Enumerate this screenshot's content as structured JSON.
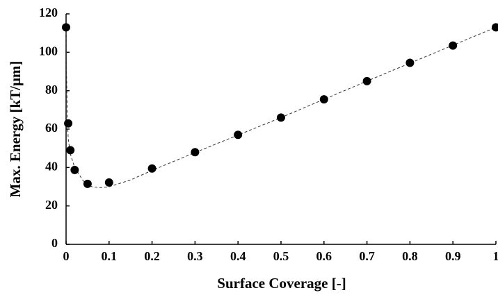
{
  "chart_data": {
    "type": "scatter",
    "x_label": "Surface Coverage [-]",
    "y_label": "Max. Energy [kT/μm]",
    "x": [
      0,
      0.005,
      0.01,
      0.02,
      0.05,
      0.1,
      0.2,
      0.3,
      0.4,
      0.5,
      0.6,
      0.7,
      0.8,
      0.9,
      1
    ],
    "values": [
      113,
      63,
      49,
      38.7,
      31.5,
      32.2,
      39.5,
      48,
      57,
      66,
      75.5,
      85,
      94.5,
      103.5,
      113
    ],
    "color": "#000000",
    "curve": {
      "x": [
        0,
        0.001,
        0.003,
        0.005,
        0.01,
        0.02,
        0.04,
        0.06,
        0.08,
        0.1,
        0.15,
        0.2,
        0.3,
        0.5,
        0.7,
        1
      ],
      "values": [
        113,
        90,
        65,
        55,
        47,
        40,
        33,
        30,
        29.5,
        30,
        33.5,
        38.5,
        47.8,
        66,
        85,
        113
      ],
      "color": "#333333"
    },
    "xlim": [
      0,
      1
    ],
    "ylim": [
      0,
      120
    ],
    "xticks": [
      0,
      0.1,
      0.2,
      0.3,
      0.4,
      0.5,
      0.6,
      0.7,
      0.8,
      0.9,
      1
    ],
    "yticks": [
      0,
      20,
      40,
      60,
      80,
      100,
      120
    ]
  }
}
